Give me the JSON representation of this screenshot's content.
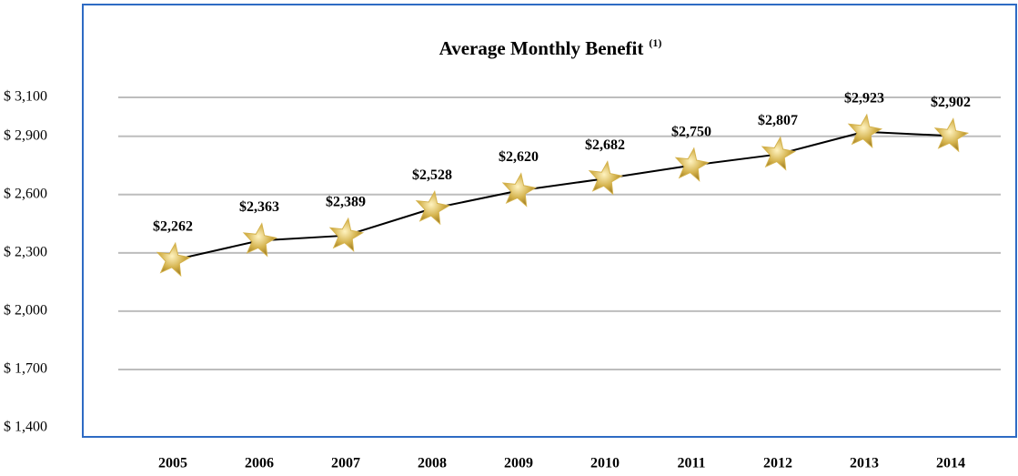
{
  "chart_data": {
    "type": "line",
    "title": "Average Monthly Benefit",
    "title_note": "(1)",
    "categories": [
      "2005",
      "2006",
      "2007",
      "2008",
      "2009",
      "2010",
      "2011",
      "2012",
      "2013",
      "2014"
    ],
    "values": [
      2262,
      2363,
      2389,
      2528,
      2620,
      2682,
      2750,
      2807,
      2923,
      2902
    ],
    "value_labels": [
      "$2,262",
      "$2,363",
      "$2,389",
      "$2,528",
      "$2,620",
      "$2,682",
      "$2,750",
      "$2,807",
      "$2,923",
      "$2,902"
    ],
    "color": "#000000",
    "marker_color": "#d4b24c",
    "frame_color": "#2e6bc4",
    "ylim": [
      1400,
      3100
    ],
    "yticks": [
      {
        "value": 1400,
        "label": "$ 1,400"
      },
      {
        "value": 1700,
        "label": "$ 1,700"
      },
      {
        "value": 2000,
        "label": "$ 2,000"
      },
      {
        "value": 2300,
        "label": "$ 2,300"
      },
      {
        "value": 2600,
        "label": "$ 2,600"
      },
      {
        "value": 2900,
        "label": "$ 2,900"
      },
      {
        "value": 3100,
        "label": "$ 3,100"
      }
    ],
    "grid": true
  }
}
